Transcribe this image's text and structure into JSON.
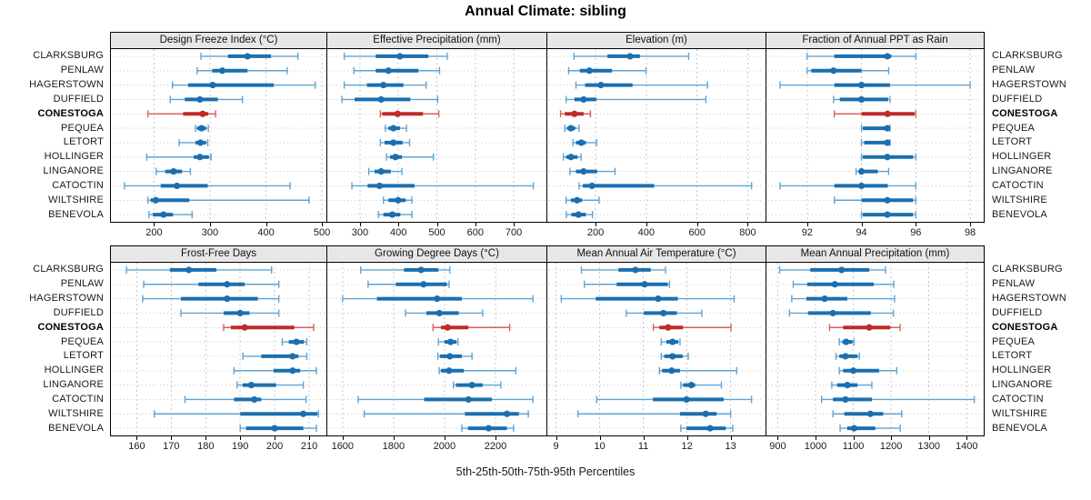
{
  "title": "Annual Climate: sibling",
  "caption": "5th-25th-50th-75th-95th Percentiles",
  "sites": [
    "CLARKSBURG",
    "PENLAW",
    "HAGERSTOWN",
    "DUFFIELD",
    "CONESTOGA",
    "PEQUEA",
    "LETORT",
    "HOLLINGER",
    "LINGANORE",
    "CATOCTIN",
    "WILTSHIRE",
    "BENEVOLA"
  ],
  "highlight_site": "CONESTOGA",
  "colors": {
    "blue_main": "#1b6fb0",
    "blue_light": "#5fa3d4",
    "red_main": "#bf2a2a",
    "red_light": "#d4625c",
    "strip_bg": "#e7e7e7",
    "grid": "#c9c9c9",
    "border": "#000000"
  },
  "chart_data": {
    "type": "dotplot-percentiles",
    "percentiles": [
      5,
      25,
      50,
      75,
      95
    ],
    "legend": "thin line = 5th-95th, thick line = 25th-75th, dot = 50th percentile",
    "panels": [
      {
        "title": "Design Freeze Index (°C)",
        "domain": [
          123,
          508
        ],
        "ticks": [
          200,
          300,
          400,
          500
        ],
        "values": [
          [
            284,
            332,
            367,
            409,
            457
          ],
          [
            277,
            304,
            322,
            367,
            438
          ],
          [
            233,
            261,
            305,
            414,
            488
          ],
          [
            229,
            255,
            282,
            314,
            358
          ],
          [
            189,
            252,
            287,
            297,
            310
          ],
          [
            274,
            277,
            285,
            293,
            297
          ],
          [
            245,
            274,
            283,
            293,
            296
          ],
          [
            187,
            271,
            282,
            298,
            302
          ],
          [
            204,
            220,
            235,
            250,
            265
          ],
          [
            147,
            212,
            241,
            296,
            443
          ],
          [
            189,
            194,
            203,
            263,
            477
          ],
          [
            191,
            198,
            217,
            234,
            268
          ]
        ]
      },
      {
        "title": "Effective Precipitation (mm)",
        "domain": [
          215,
          785
        ],
        "ticks": [
          300,
          400,
          500,
          600,
          700
        ],
        "values": [
          [
            259,
            341,
            404,
            478,
            527
          ],
          [
            284,
            341,
            374,
            452,
            507
          ],
          [
            259,
            318,
            361,
            413,
            472
          ],
          [
            253,
            286,
            355,
            431,
            502
          ],
          [
            353,
            358,
            398,
            464,
            505
          ],
          [
            366,
            374,
            387,
            404,
            421
          ],
          [
            353,
            364,
            387,
            411,
            429
          ],
          [
            369,
            378,
            392,
            409,
            491
          ],
          [
            323,
            338,
            355,
            380,
            409
          ],
          [
            279,
            320,
            351,
            442,
            751
          ],
          [
            361,
            374,
            399,
            419,
            435
          ],
          [
            348,
            361,
            384,
            405,
            435
          ]
        ]
      },
      {
        "title": "Elevation (m)",
        "domain": [
          10,
          870
        ],
        "ticks": [
          200,
          400,
          600,
          800
        ],
        "values": [
          [
            115,
            247,
            336,
            375,
            567
          ],
          [
            94,
            138,
            176,
            265,
            399
          ],
          [
            123,
            159,
            221,
            346,
            641
          ],
          [
            84,
            117,
            153,
            204,
            635
          ],
          [
            62,
            79,
            117,
            153,
            180
          ],
          [
            79,
            88,
            103,
            120,
            135
          ],
          [
            111,
            123,
            144,
            162,
            204
          ],
          [
            73,
            84,
            103,
            129,
            143
          ],
          [
            99,
            123,
            153,
            206,
            277
          ],
          [
            135,
            150,
            186,
            431,
            815
          ],
          [
            84,
            103,
            127,
            147,
            214
          ],
          [
            85,
            105,
            133,
            162,
            188
          ]
        ]
      },
      {
        "title": "Fraction of Annual PPT as Rain",
        "domain": [
          90.5,
          98.5
        ],
        "ticks": [
          92,
          94,
          96,
          98
        ],
        "values": [
          [
            92.0,
            93.0,
            94.95,
            95.1,
            96.0
          ],
          [
            92.0,
            92.15,
            92.97,
            94.0,
            95.0
          ],
          [
            91.0,
            93.0,
            94.0,
            95.05,
            98.0
          ],
          [
            92.97,
            93.2,
            94.0,
            94.98,
            95.05
          ],
          [
            93.0,
            94.0,
            94.96,
            95.95,
            96.0
          ],
          [
            94.0,
            94.05,
            94.95,
            95.0,
            95.05
          ],
          [
            94.0,
            94.1,
            94.95,
            95.0,
            95.05
          ],
          [
            94.0,
            94.05,
            94.95,
            95.9,
            96.0
          ],
          [
            93.8,
            93.9,
            94.0,
            94.6,
            95.0
          ],
          [
            91.0,
            93.0,
            94.0,
            94.97,
            96.0
          ],
          [
            93.0,
            94.0,
            94.95,
            95.9,
            96.0
          ],
          [
            94.0,
            94.05,
            94.95,
            95.9,
            96.0
          ]
        ]
      },
      {
        "title": "Frost-Free Days",
        "domain": [
          152.5,
          215
        ],
        "ticks": [
          160,
          170,
          180,
          190,
          200,
          210
        ],
        "values": [
          [
            157,
            169.6,
            175.1,
            183.1,
            199.1
          ],
          [
            162,
            177.9,
            186.2,
            191.3,
            201.2
          ],
          [
            161.7,
            172.8,
            186.2,
            195.1,
            201.2
          ],
          [
            172.8,
            185.2,
            190,
            192.7,
            201.2
          ],
          [
            185.2,
            187.3,
            191.3,
            205.7,
            211.3
          ],
          [
            202.2,
            204.1,
            206.3,
            208.5,
            209.3
          ],
          [
            190.8,
            196.1,
            205.2,
            206.9,
            209.3
          ],
          [
            188.2,
            199.7,
            205.2,
            207.4,
            212.1
          ],
          [
            189.1,
            190.7,
            193.2,
            200.4,
            208.3
          ],
          [
            174,
            188.2,
            194.1,
            196.1,
            209.1
          ],
          [
            165.1,
            190,
            208.3,
            212.4,
            212.7
          ],
          [
            190,
            191.7,
            200,
            208.3,
            212.1
          ]
        ]
      },
      {
        "title": "Growing Degree Days (°C)",
        "domain": [
          1540,
          2400
        ],
        "ticks": [
          1600,
          1800,
          2000,
          2200
        ],
        "values": [
          [
            1671,
            1841,
            1908,
            1976,
            2021
          ],
          [
            1700,
            1809,
            1918,
            2009,
            2018
          ],
          [
            1600,
            1735,
            1971,
            2068,
            2347
          ],
          [
            1847,
            1929,
            1980,
            2056,
            2150
          ],
          [
            1955,
            1986,
            2012,
            2094,
            2256
          ],
          [
            1976,
            2000,
            2024,
            2047,
            2053
          ],
          [
            1974,
            1982,
            2021,
            2068,
            2108
          ],
          [
            1979,
            1986,
            2018,
            2076,
            2280
          ],
          [
            2035,
            2045,
            2108,
            2150,
            2221
          ],
          [
            1661,
            1920,
            2094,
            2186,
            2347
          ],
          [
            1685,
            2080,
            2245,
            2292,
            2329
          ],
          [
            2068,
            2092,
            2173,
            2245,
            2271
          ]
        ]
      },
      {
        "title": "Mean Annual Air Temperature (°C)",
        "domain": [
          8.8,
          13.8
        ],
        "ticks": [
          9,
          10,
          11,
          12,
          13
        ],
        "values": [
          [
            9.58,
            10.43,
            10.82,
            11.17,
            11.51
          ],
          [
            9.65,
            10.39,
            11.03,
            11.56,
            11.6
          ],
          [
            9.12,
            9.91,
            11.34,
            11.79,
            13.08
          ],
          [
            10.61,
            11.01,
            11.46,
            11.77,
            12.34
          ],
          [
            11.23,
            11.37,
            11.57,
            11.91,
            13.01
          ],
          [
            11.41,
            11.53,
            11.67,
            11.8,
            11.84
          ],
          [
            11.41,
            11.48,
            11.67,
            11.9,
            12.03
          ],
          [
            11.37,
            11.43,
            11.65,
            11.84,
            13.14
          ],
          [
            11.86,
            11.91,
            12.1,
            12.19,
            12.79
          ],
          [
            9.93,
            11.22,
            11.99,
            12.84,
            13.48
          ],
          [
            9.5,
            11.84,
            12.43,
            12.68,
            13.0
          ],
          [
            11.86,
            11.99,
            12.53,
            12.89,
            13.05
          ]
        ]
      },
      {
        "title": "Mean Annual Precipitation (mm)",
        "domain": [
          870,
          1445
        ],
        "ticks": [
          900,
          1000,
          1100,
          1200,
          1300,
          1400
        ],
        "values": [
          [
            905,
            986,
            1069,
            1142,
            1185
          ],
          [
            941,
            978,
            1051,
            1154,
            1207
          ],
          [
            937,
            976,
            1024,
            1084,
            1209
          ],
          [
            931,
            980,
            1046,
            1146,
            1206
          ],
          [
            1037,
            1073,
            1142,
            1198,
            1224
          ],
          [
            1063,
            1071,
            1081,
            1098,
            1102
          ],
          [
            1054,
            1063,
            1079,
            1111,
            1116
          ],
          [
            1063,
            1073,
            1100,
            1168,
            1215
          ],
          [
            1043,
            1057,
            1084,
            1111,
            1149
          ],
          [
            1016,
            1046,
            1079,
            1149,
            1420
          ],
          [
            1046,
            1076,
            1145,
            1179,
            1228
          ],
          [
            1065,
            1084,
            1102,
            1158,
            1224
          ]
        ]
      }
    ]
  }
}
